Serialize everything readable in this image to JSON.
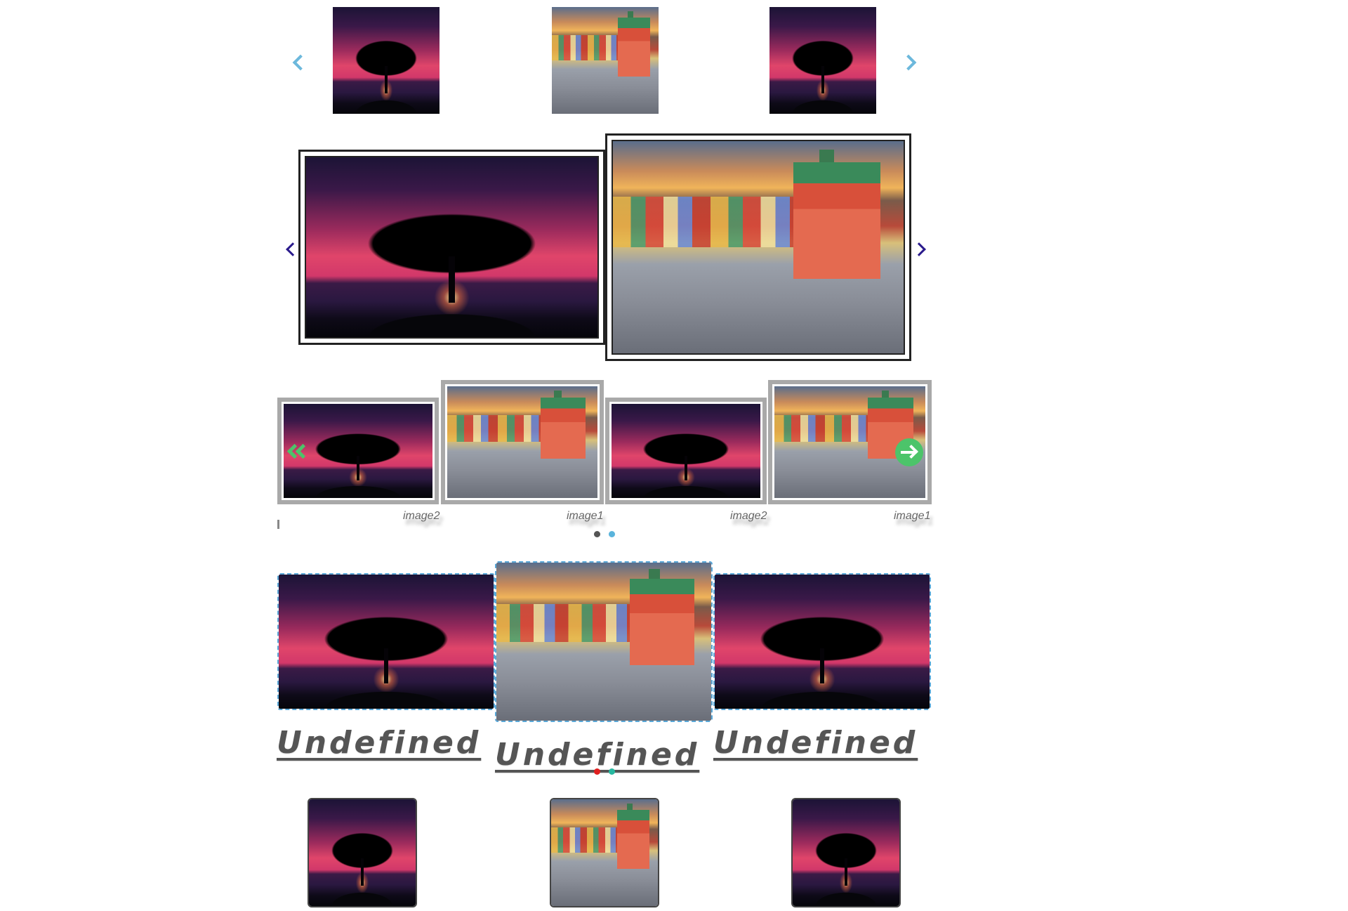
{
  "colors": {
    "carousel1_arrow": "#6cb8dc",
    "carousel2_arrow": "#2a1a8c",
    "carousel3_arrow": "#4cc46a",
    "carousel3_dot_active": "#5ab4dc",
    "carousel3_dot_inactive": "#555555",
    "carousel4_dot_active": "#e02020",
    "carousel4_dot_inactive": "#27b8a0",
    "frame_dashed": "#5aa8d8"
  },
  "images": {
    "sunset": "sunset-tree-image",
    "oldtown": "old-town-square-image"
  },
  "carousel3": {
    "captions": [
      "image2",
      "image1",
      "image2",
      "image1"
    ]
  },
  "carousel4": {
    "labels": [
      "Undefined",
      "Undefined",
      "Undefined"
    ]
  }
}
